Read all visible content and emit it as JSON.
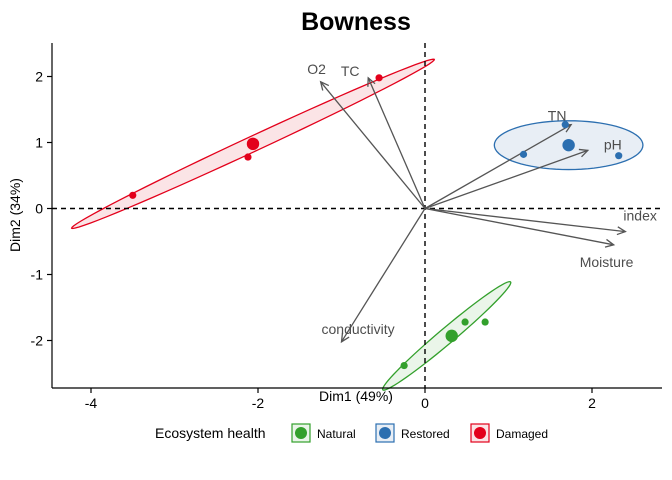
{
  "chart_data": {
    "type": "scatter",
    "title": "Bowness",
    "xlabel": "Dim1 (49%)",
    "ylabel": "Dim2 (34%)",
    "xlim": [
      -4.5,
      2.85
    ],
    "ylim": [
      -2.72,
      2.5
    ],
    "x_ticks": [
      -4,
      -2,
      0,
      2
    ],
    "y_ticks": [
      -2,
      -1,
      0,
      1,
      2
    ],
    "reference_lines": {
      "x": 0,
      "y": 0,
      "style": "dashed"
    },
    "legend": {
      "title": "Ecosystem health",
      "position": "bottom",
      "entries": [
        {
          "name": "Natural",
          "color": "#33a02c"
        },
        {
          "name": "Restored",
          "color": "#2c6fb0"
        },
        {
          "name": "Damaged",
          "color": "#e3001b"
        }
      ]
    },
    "series": [
      {
        "name": "Natural",
        "color": "#33a02c",
        "fill": "#eaf5e9",
        "points": [
          [
            -0.25,
            -2.38
          ],
          [
            0.48,
            -1.72
          ],
          [
            0.72,
            -1.72
          ]
        ],
        "centroid": [
          0.32,
          -1.93
        ],
        "ellipse": {
          "center": [
            0.26,
            -1.93
          ],
          "rx": 1.12,
          "ry": 0.105,
          "angle_deg": 47
        }
      },
      {
        "name": "Restored",
        "color": "#2c6fb0",
        "fill": "#e8eef5",
        "points": [
          [
            1.68,
            1.27
          ],
          [
            1.18,
            0.82
          ],
          [
            2.32,
            0.8
          ]
        ],
        "centroid": [
          1.72,
          0.96
        ],
        "ellipse": {
          "center": [
            1.72,
            0.96
          ],
          "rx": 0.89,
          "ry": 0.37,
          "angle_deg": 0
        }
      },
      {
        "name": "Damaged",
        "color": "#e3001b",
        "fill": "#fbe4e6",
        "points": [
          [
            -0.55,
            1.98
          ],
          [
            -2.12,
            0.78
          ],
          [
            -3.5,
            0.2
          ]
        ],
        "centroid": [
          -2.06,
          0.98
        ],
        "ellipse": {
          "center": [
            -2.06,
            0.98
          ],
          "rx": 2.52,
          "ry": 0.11,
          "angle_deg": 30.5
        }
      }
    ],
    "variable_arrows": [
      {
        "label": "O2",
        "x": -1.25,
        "y": 1.92
      },
      {
        "label": "TC",
        "x": -0.68,
        "y": 1.98
      },
      {
        "label": "TN",
        "x": 1.75,
        "y": 1.27
      },
      {
        "label": "pH",
        "x": 1.95,
        "y": 0.88
      },
      {
        "label": "index",
        "x": 2.4,
        "y": -0.35
      },
      {
        "label": "Moisture",
        "x": 2.26,
        "y": -0.55
      },
      {
        "label": "conductivity",
        "x": -1.0,
        "y": -2.02
      }
    ]
  }
}
